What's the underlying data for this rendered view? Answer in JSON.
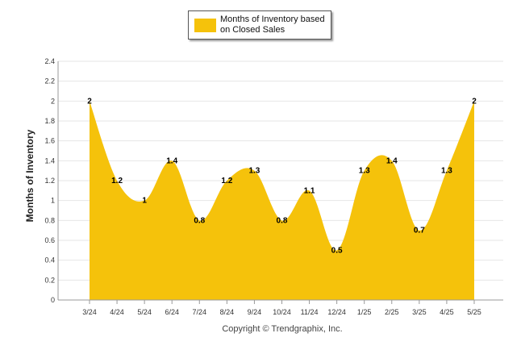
{
  "legend": {
    "label": "Months of Inventory based on Closed Sales",
    "color": "#F5C20B"
  },
  "footer": {
    "copyright": "Copyright © Trendgraphix, Inc."
  },
  "chart_data": {
    "type": "area",
    "title": "",
    "xlabel": "",
    "ylabel": "Months of Inventory",
    "ylim": [
      0,
      2.4
    ],
    "yticks": [
      "0",
      "0.2",
      "0.4",
      "0.6",
      "0.8",
      "1",
      "1.2",
      "1.4",
      "1.6",
      "1.8",
      "2",
      "2.2",
      "2.4"
    ],
    "categories": [
      "3/24",
      "4/24",
      "5/24",
      "6/24",
      "7/24",
      "8/24",
      "9/24",
      "10/24",
      "11/24",
      "12/24",
      "1/25",
      "2/25",
      "3/25",
      "4/25",
      "5/25"
    ],
    "series": [
      {
        "name": "Months of Inventory based on Closed Sales",
        "values": [
          2,
          1.2,
          1,
          1.4,
          0.8,
          1.2,
          1.3,
          0.8,
          1.1,
          0.5,
          1.3,
          1.4,
          0.7,
          1.3,
          2
        ],
        "labels": [
          "2",
          "1.2",
          "1",
          "1.4",
          "0.8",
          "1.2",
          "1.3",
          "0.8",
          "1.1",
          "0.5",
          "1.3",
          "1.4",
          "0.7",
          "1.3",
          "2"
        ]
      }
    ],
    "grid": true,
    "legend_position": "top-center",
    "fill_color": "#F5C20B"
  }
}
